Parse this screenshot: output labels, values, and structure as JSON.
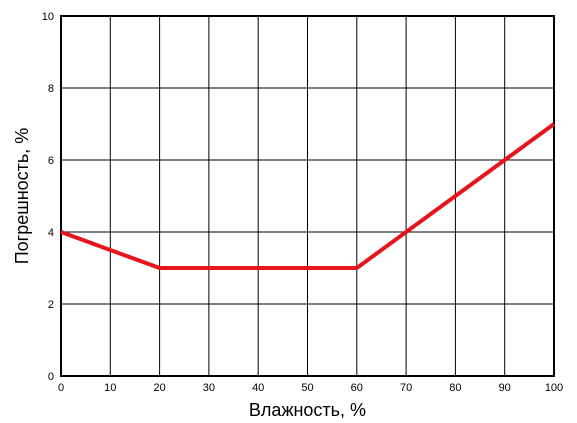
{
  "chart_data": {
    "type": "line",
    "xlabel": "Влажность, %",
    "ylabel": "Погрешность, %",
    "xlim": [
      0,
      100
    ],
    "ylim": [
      0,
      10
    ],
    "x_ticks": [
      0,
      10,
      20,
      30,
      40,
      50,
      60,
      70,
      80,
      90,
      100
    ],
    "y_ticks": [
      0,
      2,
      4,
      6,
      8,
      10
    ],
    "grid": true,
    "legend": "none",
    "series": [
      {
        "color": "#e8141c",
        "points": [
          {
            "x": 0,
            "y": 4
          },
          {
            "x": 20,
            "y": 3
          },
          {
            "x": 60,
            "y": 3
          },
          {
            "x": 100,
            "y": 7
          }
        ]
      }
    ]
  }
}
